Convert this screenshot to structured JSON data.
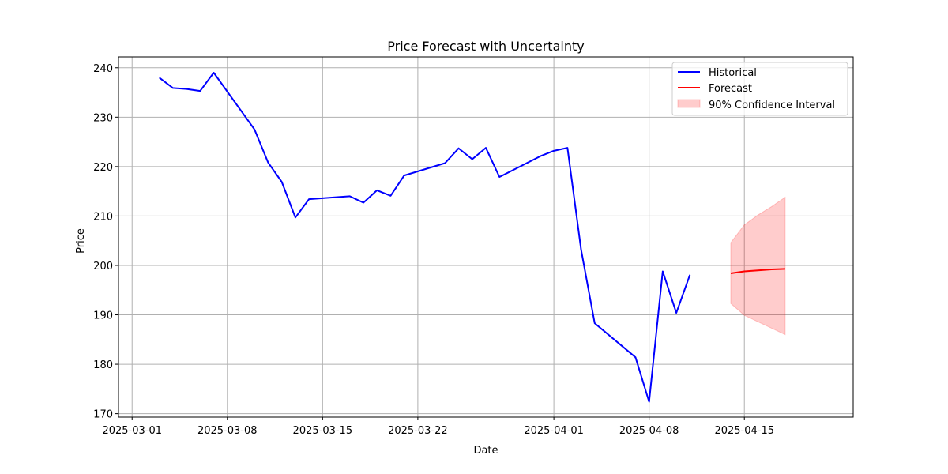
{
  "chart_data": {
    "type": "line",
    "title": "Price Forecast with Uncertainty",
    "xlabel": "Date",
    "ylabel": "Price",
    "x_range": [
      "2025-02-28",
      "2025-04-23"
    ],
    "ylim": [
      169.3,
      242.2
    ],
    "x_ticks": [
      "2025-03-01",
      "2025-03-08",
      "2025-03-15",
      "2025-03-22",
      "2025-04-01",
      "2025-04-08",
      "2025-04-15"
    ],
    "y_ticks": [
      170,
      180,
      190,
      200,
      210,
      220,
      230,
      240
    ],
    "grid": true,
    "legend_position": "top-right",
    "series": [
      {
        "name": "Historical",
        "color": "#0000ff",
        "x": [
          "2025-03-03",
          "2025-03-04",
          "2025-03-05",
          "2025-03-06",
          "2025-03-07",
          "2025-03-10",
          "2025-03-11",
          "2025-03-12",
          "2025-03-13",
          "2025-03-14",
          "2025-03-17",
          "2025-03-18",
          "2025-03-19",
          "2025-03-20",
          "2025-03-21",
          "2025-03-24",
          "2025-03-25",
          "2025-03-26",
          "2025-03-27",
          "2025-03-28",
          "2025-03-31",
          "2025-04-01",
          "2025-04-02",
          "2025-04-03",
          "2025-04-04",
          "2025-04-07",
          "2025-04-08",
          "2025-04-09",
          "2025-04-10",
          "2025-04-11"
        ],
        "y": [
          238.0,
          235.9,
          235.7,
          235.3,
          239.0,
          227.5,
          220.8,
          216.9,
          209.7,
          213.4,
          214.0,
          212.7,
          215.2,
          214.1,
          218.2,
          220.7,
          223.7,
          221.5,
          223.8,
          217.9,
          222.1,
          223.2,
          223.8,
          203.2,
          188.3,
          181.4,
          172.4,
          198.8,
          190.4,
          198.1
        ]
      },
      {
        "name": "Forecast",
        "color": "#ff0000",
        "x": [
          "2025-04-14",
          "2025-04-15",
          "2025-04-16",
          "2025-04-17",
          "2025-04-18"
        ],
        "y": [
          198.4,
          198.8,
          199.0,
          199.2,
          199.3
        ]
      }
    ],
    "confidence_interval": {
      "name": "90% Confidence Interval",
      "color": "#ff0000",
      "x": [
        "2025-04-14",
        "2025-04-15",
        "2025-04-16",
        "2025-04-17",
        "2025-04-18"
      ],
      "lower": [
        192.3,
        189.9,
        188.6,
        187.3,
        186.0
      ],
      "upper": [
        204.6,
        208.2,
        210.2,
        211.9,
        213.8
      ]
    }
  }
}
